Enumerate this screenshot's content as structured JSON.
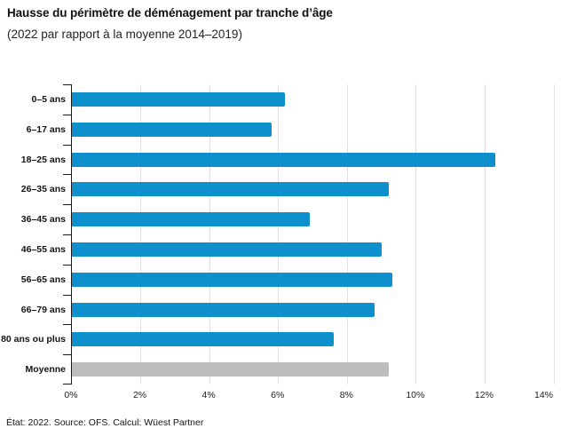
{
  "header": {
    "title": "Hausse du périmètre de déménagement par tranche d’âge",
    "subtitle": "(2022 par rapport à la moyenne 2014–2019)"
  },
  "chart_data": {
    "type": "bar",
    "orientation": "horizontal",
    "title": "Hausse du périmètre de déménagement par tranche d’âge",
    "subtitle": "(2022 par rapport à la moyenne 2014–2019)",
    "categories": [
      "0–5 ans",
      "6–17 ans",
      "18–25 ans",
      "26–35 ans",
      "36–45 ans",
      "46–55 ans",
      "56–65 ans",
      "66–79 ans",
      "80 ans ou plus",
      "Moyenne"
    ],
    "values": [
      6.2,
      5.8,
      12.3,
      9.2,
      6.9,
      9.0,
      9.3,
      8.8,
      7.6,
      9.2
    ],
    "unit": "%",
    "xlabel": "",
    "ylabel": "",
    "xlim": [
      0,
      14
    ],
    "xticks": [
      0,
      2,
      4,
      6,
      8,
      10,
      12,
      14
    ],
    "xtick_labels": [
      "0%",
      "2%",
      "4%",
      "6%",
      "8%",
      "10%",
      "12%",
      "14%"
    ],
    "grid": "vertical",
    "legend": "none",
    "bar_color": "#0e90cd",
    "highlight_category": "Moyenne",
    "highlight_color": "#bdbdbd"
  },
  "footer": {
    "note": "État: 2022. Source: OFS. Calcul: Wüest Partner"
  }
}
